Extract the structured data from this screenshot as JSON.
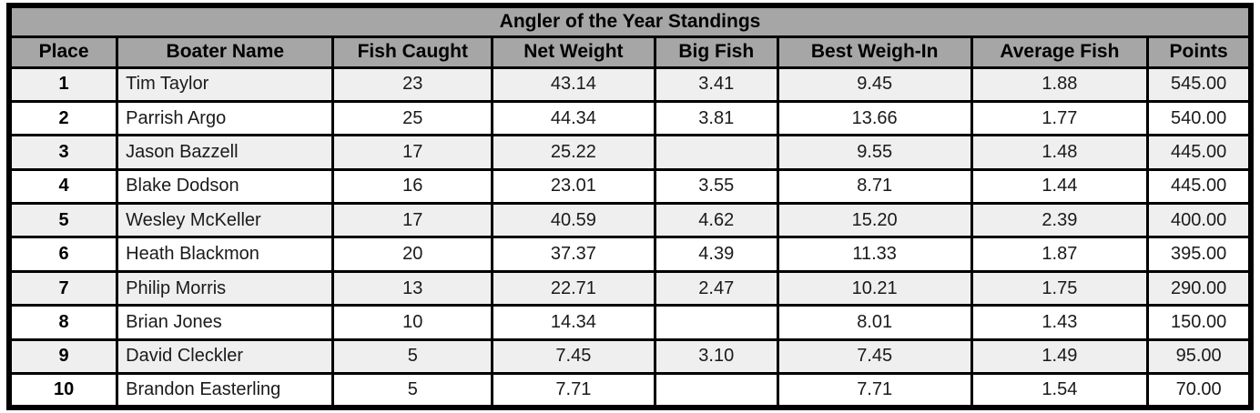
{
  "title": "Angler of the Year Standings",
  "table": {
    "columns": [
      {
        "key": "place",
        "label": "Place"
      },
      {
        "key": "boater-name",
        "label": "Boater Name"
      },
      {
        "key": "fish-caught",
        "label": "Fish Caught"
      },
      {
        "key": "net-weight",
        "label": "Net Weight"
      },
      {
        "key": "big-fish",
        "label": "Big Fish"
      },
      {
        "key": "best-weigh-in",
        "label": "Best Weigh-In"
      },
      {
        "key": "average-fish",
        "label": "Average Fish"
      },
      {
        "key": "points",
        "label": "Points"
      }
    ],
    "rows": [
      [
        "1",
        "Tim Taylor",
        "23",
        "43.14",
        "3.41",
        "9.45",
        "1.88",
        "545.00"
      ],
      [
        "2",
        "Parrish Argo",
        "25",
        "44.34",
        "3.81",
        "13.66",
        "1.77",
        "540.00"
      ],
      [
        "3",
        "Jason Bazzell",
        "17",
        "25.22",
        "",
        "9.55",
        "1.48",
        "445.00"
      ],
      [
        "4",
        "Blake Dodson",
        "16",
        "23.01",
        "3.55",
        "8.71",
        "1.44",
        "445.00"
      ],
      [
        "5",
        "Wesley McKeller",
        "17",
        "40.59",
        "4.62",
        "15.20",
        "2.39",
        "400.00"
      ],
      [
        "6",
        "Heath Blackmon",
        "20",
        "37.37",
        "4.39",
        "11.33",
        "1.87",
        "395.00"
      ],
      [
        "7",
        "Philip Morris",
        "13",
        "22.71",
        "2.47",
        "10.21",
        "1.75",
        "290.00"
      ],
      [
        "8",
        "Brian Jones",
        "10",
        "14.34",
        "",
        "8.01",
        "1.43",
        "150.00"
      ],
      [
        "9",
        "David Cleckler",
        "5",
        "7.45",
        "3.10",
        "7.45",
        "1.49",
        "95.00"
      ],
      [
        "10",
        "Brandon Easterling",
        "5",
        "7.71",
        "",
        "7.71",
        "1.54",
        "70.00"
      ]
    ]
  },
  "colors": {
    "header_bg": "#a6a6a6",
    "row_alt_bg": "#efefef",
    "row_bg": "#ffffff",
    "border": "#000000"
  }
}
